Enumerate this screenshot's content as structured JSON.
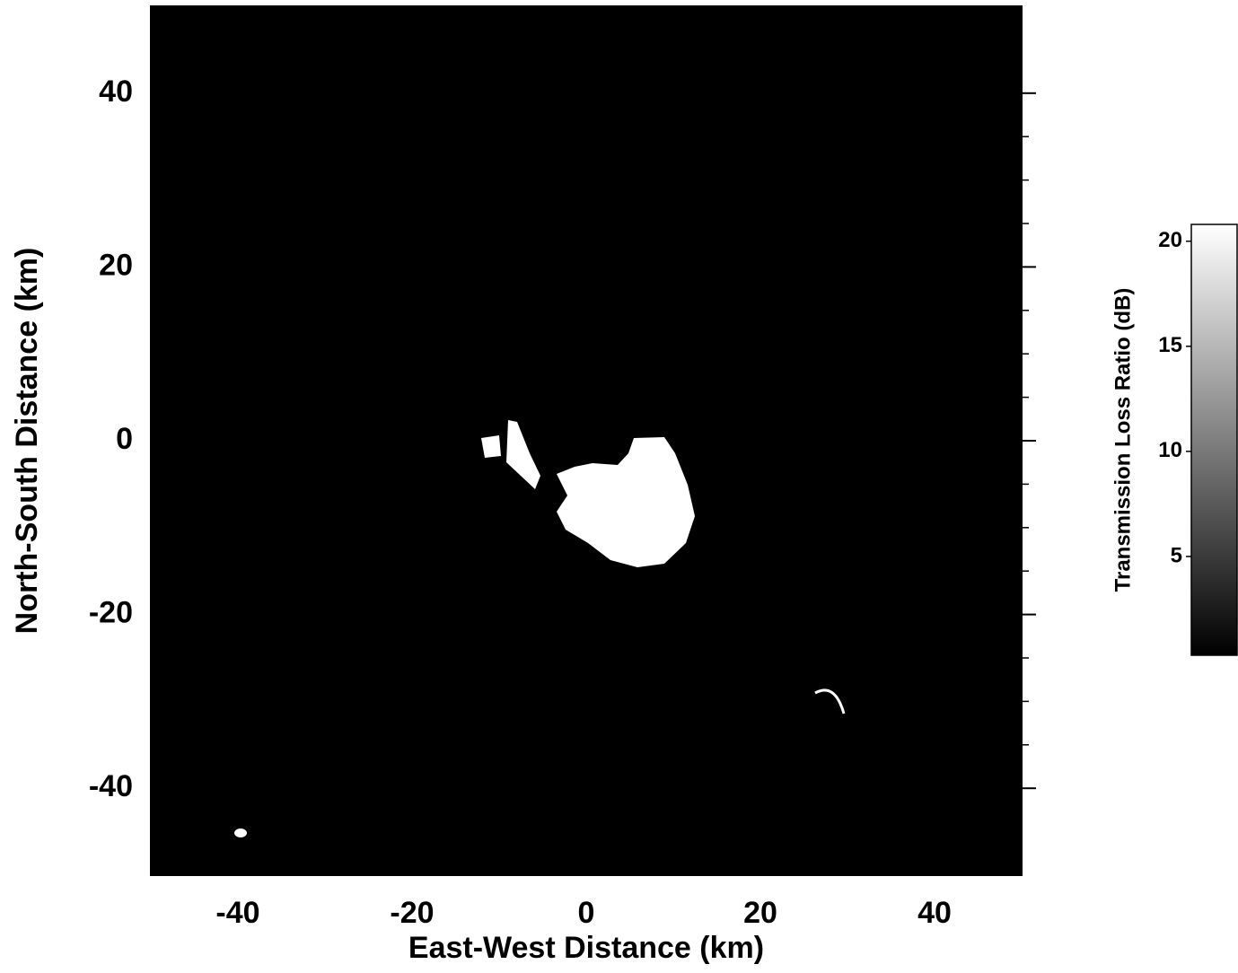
{
  "chart_data": {
    "type": "heatmap",
    "xlabel": "East-West Distance (km)",
    "ylabel": "North-South Distance (km)",
    "xlim": [
      -50,
      50
    ],
    "ylim": [
      -50,
      50
    ],
    "xticks": [
      -40,
      -20,
      0,
      20,
      40
    ],
    "yticks": [
      -40,
      -20,
      0,
      20,
      40
    ],
    "colorbar": {
      "label": "Transmission Loss Ratio (dB)",
      "lim": [
        0.3,
        20.8
      ],
      "ticks": [
        5,
        10,
        15,
        20
      ],
      "colors": [
        "#000000",
        "#ffffff"
      ]
    }
  }
}
